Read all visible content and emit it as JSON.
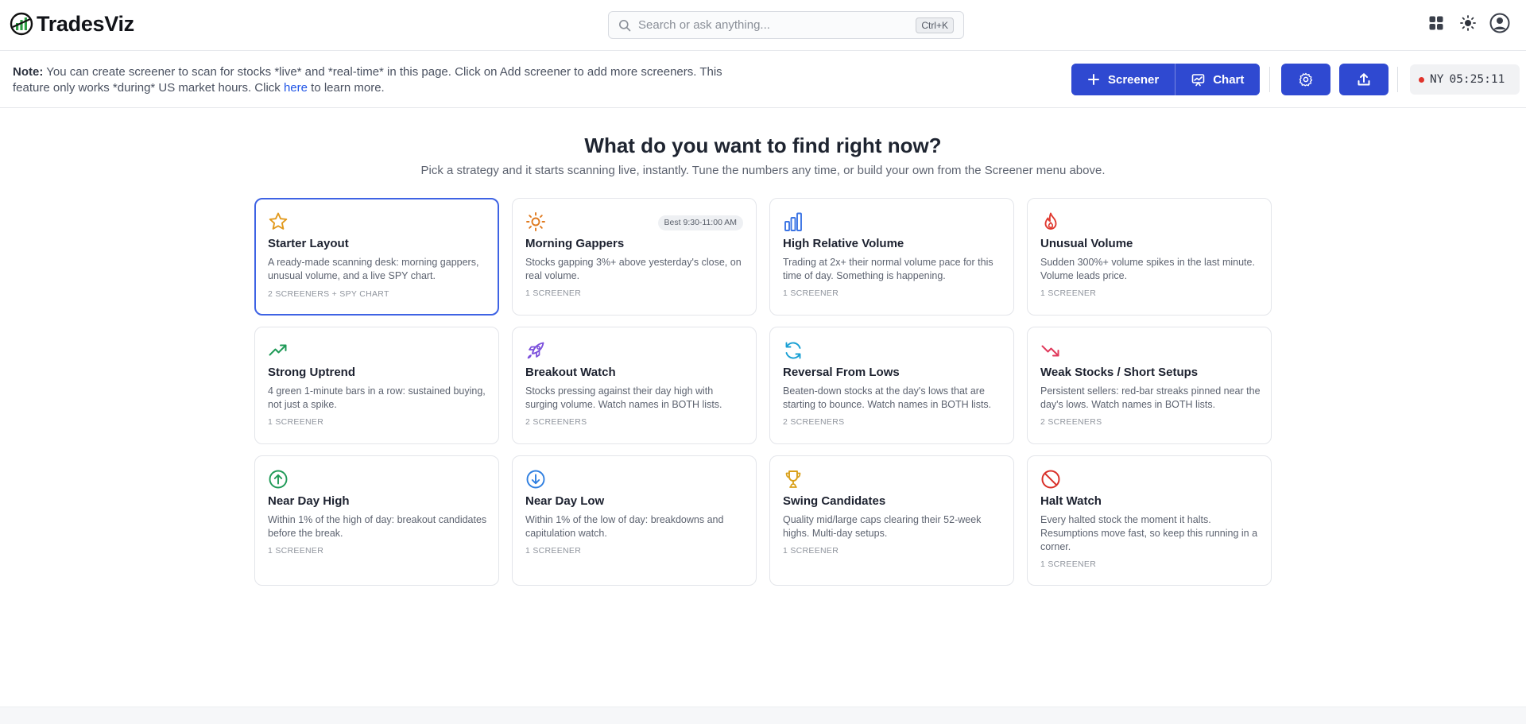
{
  "app": {
    "name": "TradesViz"
  },
  "search": {
    "placeholder": "Search or ask anything...",
    "shortcut": "Ctrl+K"
  },
  "topbar_icons": [
    "apps-grid-icon",
    "theme-sun-icon",
    "user-account-icon"
  ],
  "note": {
    "label": "Note:",
    "text_before_link": " You can create screener to scan for stocks *live* and *real-time* in this page. Click on Add screener to add more screeners. This feature only works *during* US market hours. Click ",
    "link_text": "here",
    "text_after_link": " to learn more."
  },
  "toolbar": {
    "screener_label": "Screener",
    "chart_label": "Chart",
    "settings_icon": "gear-icon",
    "upload_icon": "upload-icon",
    "clock_label": "NY",
    "clock_time": "05:25:11"
  },
  "colors": {
    "primary": "#2f49d1",
    "selected_border": "#3e63e4",
    "live_dot": "#e0342c"
  },
  "main": {
    "heading": "What do you want to find right now?",
    "subheading": "Pick a strategy and it starts scanning live, instantly. Tune the numbers any time, or build your own from the Screener menu above."
  },
  "cards": [
    {
      "icon": "star-icon",
      "title": "Starter Layout",
      "desc": "A ready-made scanning desk: morning gappers, unusual volume, and a live SPY chart.",
      "meta": "2 SCREENERS + SPY CHART",
      "selected": true
    },
    {
      "icon": "sun-icon",
      "title": "Morning Gappers",
      "desc": "Stocks gapping 3%+ above yesterday's close, on real volume.",
      "meta": "1 SCREENER",
      "badge": "Best 9:30-11:00 AM"
    },
    {
      "icon": "bar-chart-icon",
      "title": "High Relative Volume",
      "desc": "Trading at 2x+ their normal volume pace for this time of day. Something is happening.",
      "meta": "1 SCREENER"
    },
    {
      "icon": "flame-icon",
      "title": "Unusual Volume",
      "desc": "Sudden 300%+ volume spikes in the last minute. Volume leads price.",
      "meta": "1 SCREENER"
    },
    {
      "icon": "trending-up-icon",
      "title": "Strong Uptrend",
      "desc": "4 green 1-minute bars in a row: sustained buying, not just a spike.",
      "meta": "1 SCREENER"
    },
    {
      "icon": "rocket-icon",
      "title": "Breakout Watch",
      "desc": "Stocks pressing against their day high with surging volume. Watch names in BOTH lists.",
      "meta": "2 SCREENERS"
    },
    {
      "icon": "refresh-icon",
      "title": "Reversal From Lows",
      "desc": "Beaten-down stocks at the day's lows that are starting to bounce. Watch names in BOTH lists.",
      "meta": "2 SCREENERS"
    },
    {
      "icon": "trending-down-icon",
      "title": "Weak Stocks / Short Setups",
      "desc": "Persistent sellers: red-bar streaks pinned near the day's lows. Watch names in BOTH lists.",
      "meta": "2 SCREENERS"
    },
    {
      "icon": "arrow-up-circle-icon",
      "title": "Near Day High",
      "desc": "Within 1% of the high of day: breakout candidates before the break.",
      "meta": "1 SCREENER"
    },
    {
      "icon": "arrow-down-circle-icon",
      "title": "Near Day Low",
      "desc": "Within 1% of the low of day: breakdowns and capitulation watch.",
      "meta": "1 SCREENER"
    },
    {
      "icon": "trophy-icon",
      "title": "Swing Candidates",
      "desc": "Quality mid/large caps clearing their 52-week highs. Multi-day setups.",
      "meta": "1 SCREENER"
    },
    {
      "icon": "ban-icon",
      "title": "Halt Watch",
      "desc": "Every halted stock the moment it halts. Resumptions move fast, so keep this running in a corner.",
      "meta": "1 SCREENER"
    }
  ]
}
